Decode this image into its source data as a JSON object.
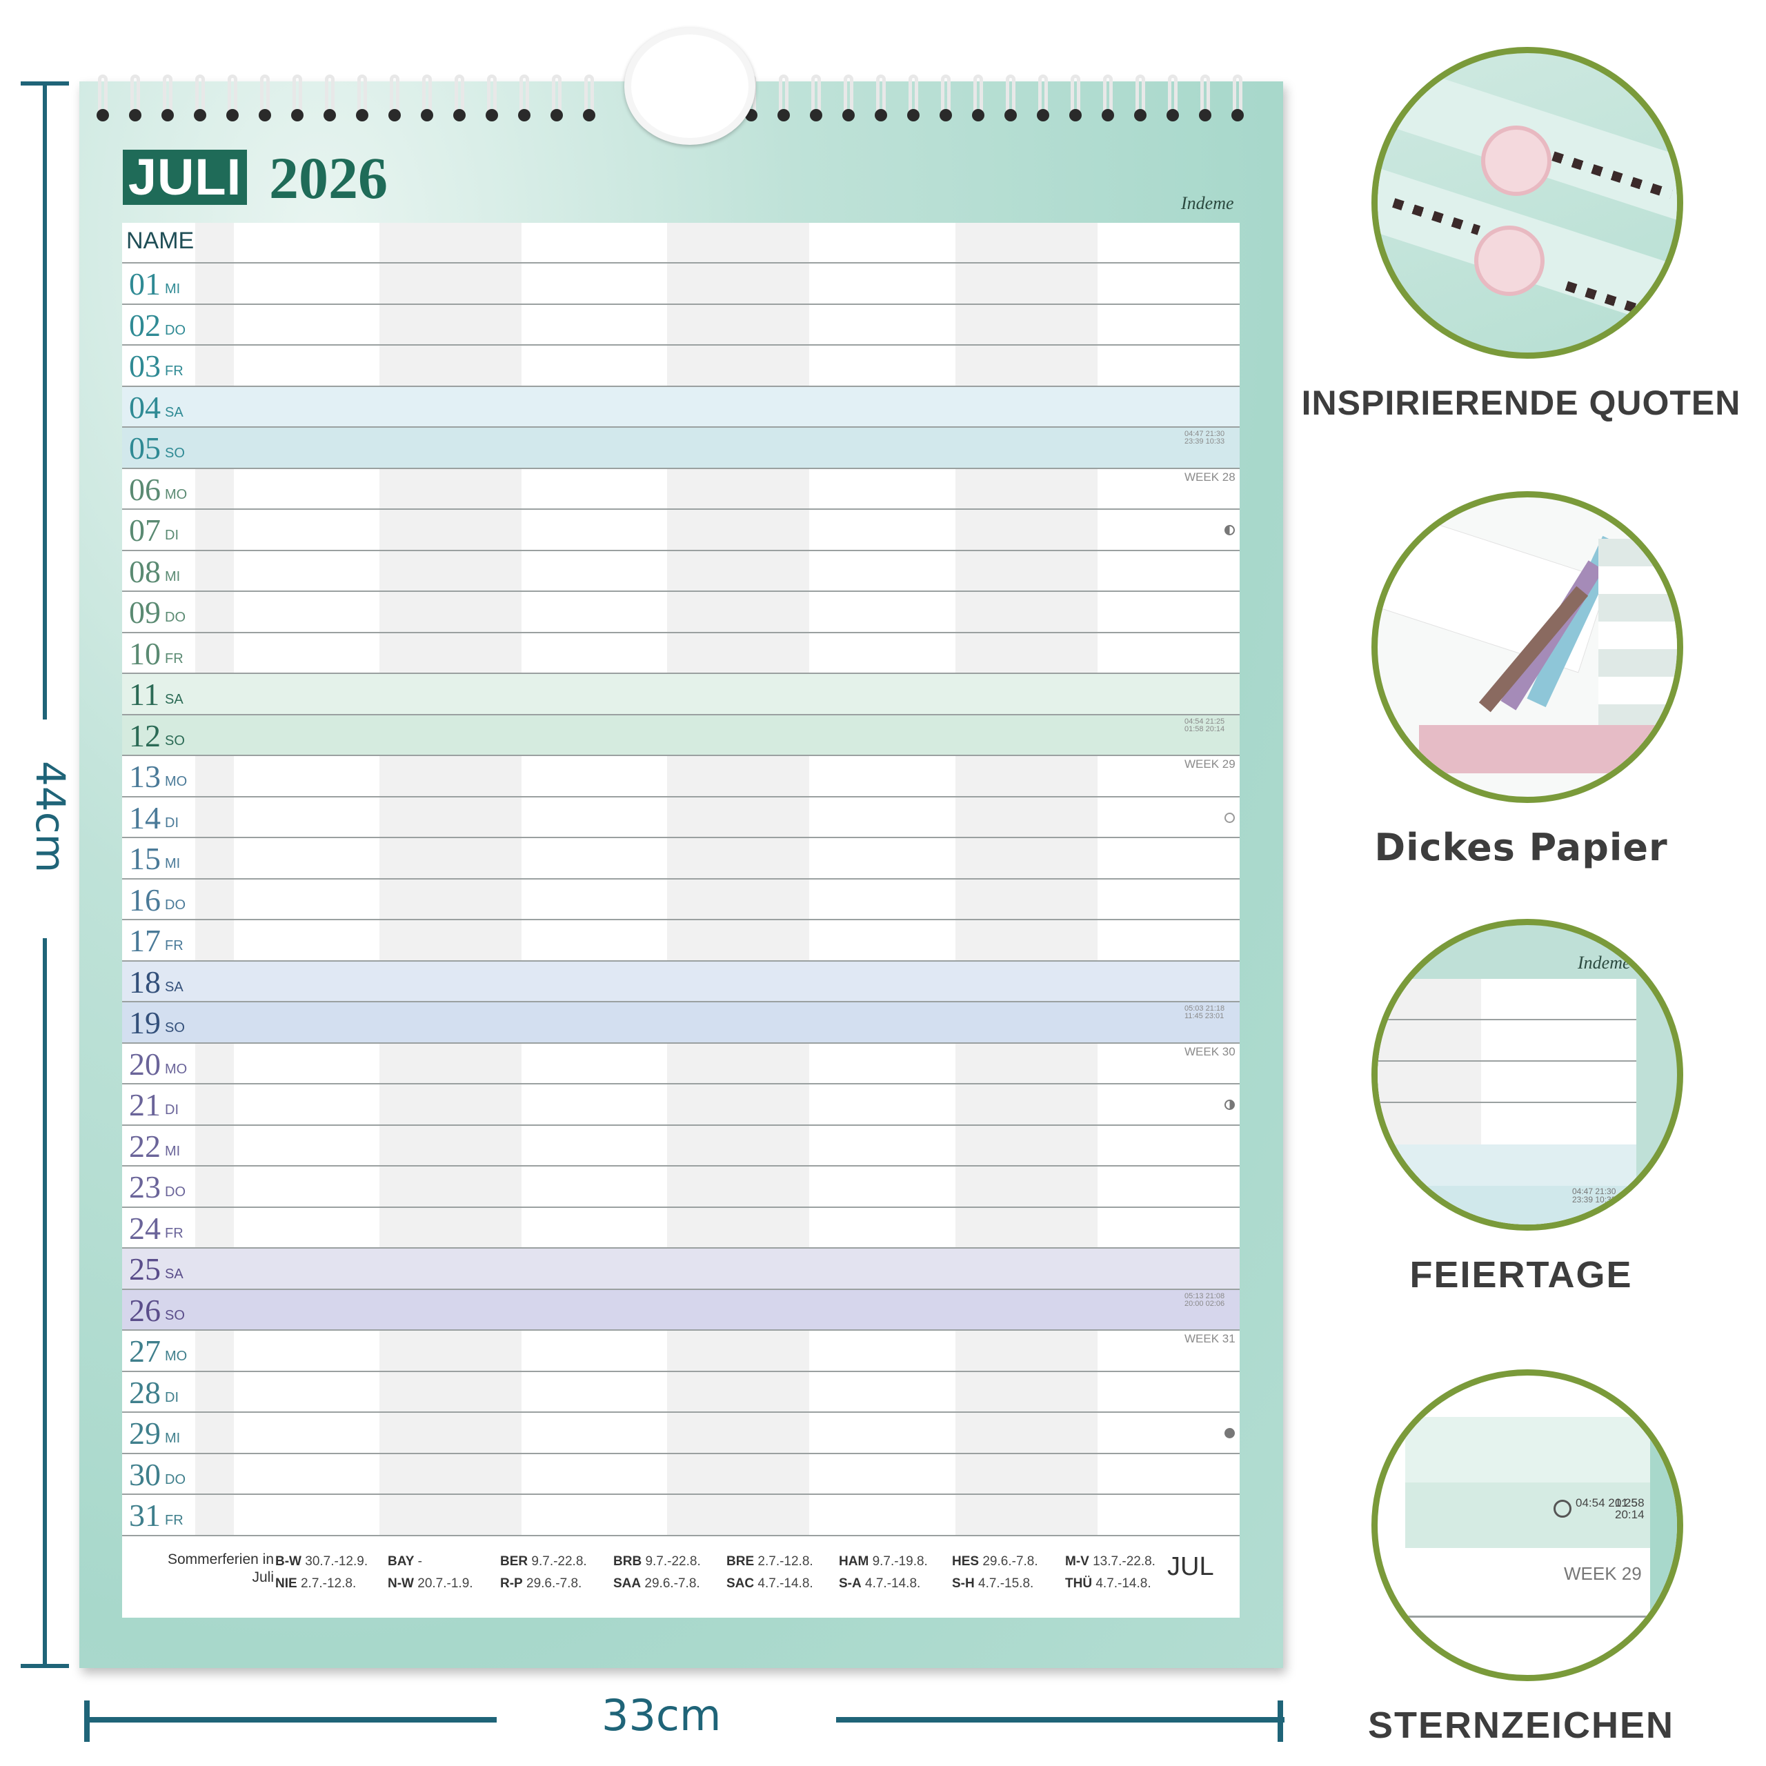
{
  "dimensions": {
    "height": "44cm",
    "width": "33cm"
  },
  "calendar": {
    "month": "JULI",
    "year": "2026",
    "brand": "Indeme",
    "name_label": "NAME",
    "days": [
      {
        "num": "01",
        "name": "MI"
      },
      {
        "num": "02",
        "name": "DO"
      },
      {
        "num": "03",
        "name": "FR"
      },
      {
        "num": "04",
        "name": "SA"
      },
      {
        "num": "05",
        "name": "SO"
      },
      {
        "num": "06",
        "name": "MO"
      },
      {
        "num": "07",
        "name": "DI"
      },
      {
        "num": "08",
        "name": "MI"
      },
      {
        "num": "09",
        "name": "DO"
      },
      {
        "num": "10",
        "name": "FR"
      },
      {
        "num": "11",
        "name": "SA"
      },
      {
        "num": "12",
        "name": "SO"
      },
      {
        "num": "13",
        "name": "MO"
      },
      {
        "num": "14",
        "name": "DI"
      },
      {
        "num": "15",
        "name": "MI"
      },
      {
        "num": "16",
        "name": "DO"
      },
      {
        "num": "17",
        "name": "FR"
      },
      {
        "num": "18",
        "name": "SA"
      },
      {
        "num": "19",
        "name": "SO"
      },
      {
        "num": "20",
        "name": "MO"
      },
      {
        "num": "21",
        "name": "DI"
      },
      {
        "num": "22",
        "name": "MI"
      },
      {
        "num": "23",
        "name": "DO"
      },
      {
        "num": "24",
        "name": "FR"
      },
      {
        "num": "25",
        "name": "SA"
      },
      {
        "num": "26",
        "name": "SO"
      },
      {
        "num": "27",
        "name": "MO"
      },
      {
        "num": "28",
        "name": "DI"
      },
      {
        "num": "29",
        "name": "MI"
      },
      {
        "num": "30",
        "name": "DO"
      },
      {
        "num": "31",
        "name": "FR"
      }
    ],
    "weeks": [
      {
        "label": "WEEK 28",
        "sun": "04:47 21:30",
        "moon": "23:39 10:33"
      },
      {
        "label": "WEEK 29",
        "sun": "04:54 21:25",
        "moon": "01:58 20:14"
      },
      {
        "label": "WEEK 30",
        "sun": "05:03 21:18",
        "moon": "11:45 23:01"
      },
      {
        "label": "WEEK 31",
        "sun": "05:13 21:08",
        "moon": "20:00 02:06"
      }
    ],
    "footer": {
      "title": "Sommerferien in Juli",
      "columns": [
        {
          "a": "B-W",
          "a_val": "30.7.-12.9.",
          "b": "NIE",
          "b_val": "2.7.-12.8."
        },
        {
          "a": "BAY",
          "a_val": "-",
          "b": "N-W",
          "b_val": "20.7.-1.9."
        },
        {
          "a": "BER",
          "a_val": "9.7.-22.8.",
          "b": "R-P",
          "b_val": "29.6.-7.8."
        },
        {
          "a": "BRB",
          "a_val": "9.7.-22.8.",
          "b": "SAA",
          "b_val": "29.6.-7.8."
        },
        {
          "a": "BRE",
          "a_val": "2.7.-12.8.",
          "b": "SAC",
          "b_val": "4.7.-14.8."
        },
        {
          "a": "HAM",
          "a_val": "9.7.-19.8.",
          "b": "S-A",
          "b_val": "4.7.-14.8."
        },
        {
          "a": "HES",
          "a_val": "29.6.-7.8.",
          "b": "S-H",
          "b_val": "4.7.-15.8."
        },
        {
          "a": "M-V",
          "a_val": "13.7.-22.8.",
          "b": "THÜ",
          "b_val": "4.7.-14.8."
        }
      ],
      "month_abbr": "JUL"
    }
  },
  "features": [
    {
      "label": "INSPIRIERENDE QUOTEN"
    },
    {
      "label": "Dickes Papier"
    },
    {
      "label": "FEIERTAGE"
    },
    {
      "label": "STERNZEICHEN"
    }
  ],
  "zoom_detail": {
    "brand": "Indeme",
    "sun": "04:47 21:30",
    "moon": "23:39 10:33",
    "sun2": "04:54 21:25",
    "moon2": "01:58 20:14",
    "week": "WEEK 29",
    "small_week": "05:03 21:18"
  },
  "colors": {
    "accent": "#1f6478",
    "badge": "#1f6b58",
    "circle_border": "#7a9a3a"
  }
}
